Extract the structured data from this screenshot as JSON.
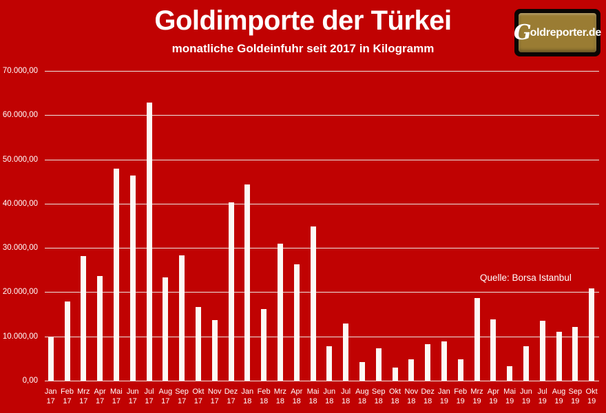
{
  "header": {
    "title": "Goldimporte der Türkei",
    "subtitle": "monatliche Goldeinfuhr seit 2017 in Kilogramm",
    "logo_g": "G",
    "logo_rest": "oldreporter.de"
  },
  "annotation": {
    "source_label": "Quelle: Borsa Istanbul"
  },
  "colors": {
    "background": "#C00202",
    "bar": "#FCF9F5",
    "gridline": "#EDE7E2",
    "text": "#FFFFFF",
    "logoGold": "#9A7C33",
    "logoBorder": "#0A0604"
  },
  "chart_data": {
    "type": "bar",
    "title": "Goldimporte der Türkei",
    "subtitle": "monatliche Goldeinfuhr seit 2017 in Kilogramm",
    "unit": "kg",
    "source": "Quelle: Borsa Istanbul",
    "grid": true,
    "ylim": [
      0,
      70000
    ],
    "ytick_step": 10000,
    "ytick_labels": [
      "70.000,00",
      "60.000,00",
      "50.000,00",
      "40.000,00",
      "30.000,00",
      "20.000,00",
      "10.000,00",
      "0,00"
    ],
    "categories": [
      [
        "Jan",
        "17"
      ],
      [
        "Feb",
        "17"
      ],
      [
        "Mrz",
        "17"
      ],
      [
        "Apr",
        "17"
      ],
      [
        "Mai",
        "17"
      ],
      [
        "Jun",
        "17"
      ],
      [
        "Jul",
        "17"
      ],
      [
        "Aug",
        "17"
      ],
      [
        "Sep",
        "17"
      ],
      [
        "Okt",
        "17"
      ],
      [
        "Nov",
        "17"
      ],
      [
        "Dez",
        "17"
      ],
      [
        "Jan",
        "18"
      ],
      [
        "Feb",
        "18"
      ],
      [
        "Mrz",
        "18"
      ],
      [
        "Apr",
        "18"
      ],
      [
        "Mai",
        "18"
      ],
      [
        "Jun",
        "18"
      ],
      [
        "Jul",
        "18"
      ],
      [
        "Aug",
        "18"
      ],
      [
        "Sep",
        "18"
      ],
      [
        "Okt",
        "18"
      ],
      [
        "Nov",
        "18"
      ],
      [
        "Dez",
        "18"
      ],
      [
        "Jan",
        "19"
      ],
      [
        "Feb",
        "19"
      ],
      [
        "Mrz",
        "19"
      ],
      [
        "Apr",
        "19"
      ],
      [
        "Mai",
        "19"
      ],
      [
        "Jun",
        "19"
      ],
      [
        "Jul",
        "19"
      ],
      [
        "Aug",
        "19"
      ],
      [
        "Sep",
        "19"
      ],
      [
        "Okt",
        "19"
      ]
    ],
    "values": [
      9900,
      17900,
      28200,
      23700,
      47900,
      46400,
      62800,
      23300,
      28300,
      16700,
      13700,
      40300,
      44300,
      16200,
      31000,
      26300,
      34800,
      7800,
      12900,
      4200,
      7300,
      3000,
      4800,
      8300,
      8900,
      4800,
      18700,
      13900,
      3300,
      7800,
      13500,
      11100,
      12100,
      20800
    ]
  }
}
